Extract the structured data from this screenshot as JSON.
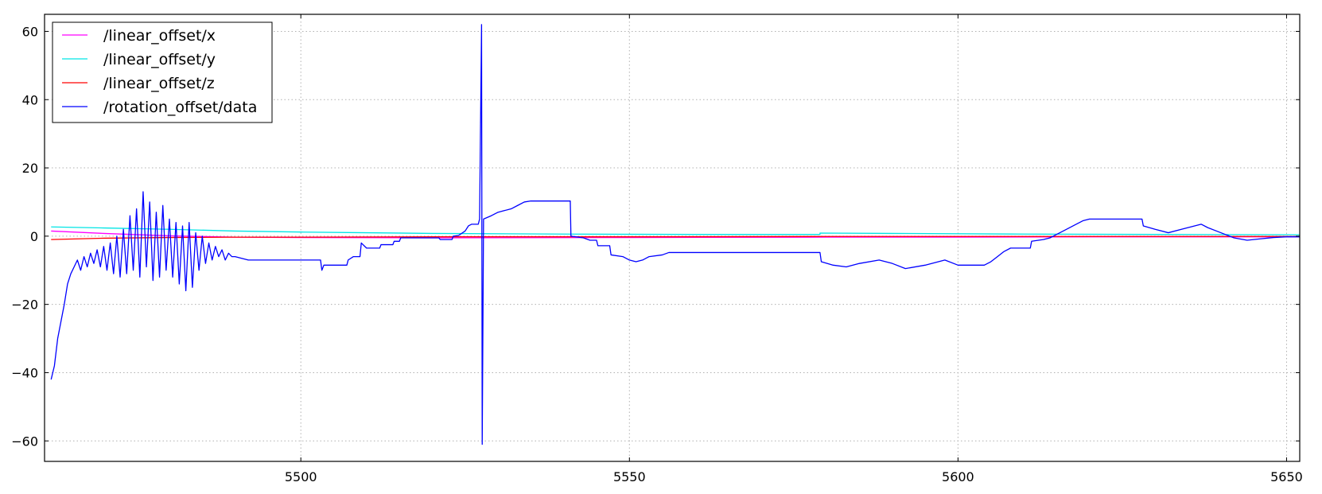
{
  "chart_data": {
    "type": "line",
    "title": "",
    "xlabel": "",
    "ylabel": "",
    "xlim": [
      5461,
      5652
    ],
    "ylim": [
      -66,
      65
    ],
    "grid": true,
    "legend_position": "upper-left",
    "x_ticks": [
      5500,
      5550,
      5600,
      5650
    ],
    "x_tick_labels": [
      "5500",
      "5550",
      "5600",
      "5650"
    ],
    "y_ticks": [
      60,
      40,
      20,
      0,
      -20,
      -40,
      -60
    ],
    "y_tick_labels": [
      "60",
      "40",
      "20",
      "0",
      "−20",
      "−40",
      "−60"
    ],
    "series": [
      {
        "name": "/linear_offset/x",
        "color": "#ff00ff",
        "points": [
          [
            5462,
            1.5
          ],
          [
            5470,
            0.8
          ],
          [
            5480,
            0.1
          ],
          [
            5490,
            -0.3
          ],
          [
            5500,
            -0.4
          ],
          [
            5520,
            -0.5
          ],
          [
            5550,
            -0.4
          ],
          [
            5580,
            -0.3
          ],
          [
            5600,
            -0.3
          ],
          [
            5620,
            -0.2
          ],
          [
            5652,
            -0.2
          ]
        ]
      },
      {
        "name": "/linear_offset/y",
        "color": "#00e5e5",
        "points": [
          [
            5462,
            2.7
          ],
          [
            5470,
            2.4
          ],
          [
            5480,
            2.0
          ],
          [
            5490,
            1.5
          ],
          [
            5500,
            1.2
          ],
          [
            5510,
            1.0
          ],
          [
            5520,
            0.8
          ],
          [
            5540,
            0.6
          ],
          [
            5560,
            0.5
          ],
          [
            5579,
            0.5
          ],
          [
            5579,
            0.9
          ],
          [
            5590,
            0.8
          ],
          [
            5610,
            0.6
          ],
          [
            5630,
            0.5
          ],
          [
            5652,
            0.4
          ]
        ]
      },
      {
        "name": "/linear_offset/z",
        "color": "#ff0000",
        "points": [
          [
            5462,
            -1.0
          ],
          [
            5470,
            -0.6
          ],
          [
            5480,
            -0.4
          ],
          [
            5490,
            -0.3
          ],
          [
            5500,
            -0.3
          ],
          [
            5520,
            -0.2
          ],
          [
            5550,
            -0.2
          ],
          [
            5580,
            -0.1
          ],
          [
            5600,
            -0.1
          ],
          [
            5652,
            -0.1
          ]
        ]
      },
      {
        "name": "/rotation_offset/data",
        "color": "#0000ff",
        "points": [
          [
            5462.0,
            -42
          ],
          [
            5462.5,
            -38
          ],
          [
            5463,
            -30
          ],
          [
            5463.5,
            -25
          ],
          [
            5464,
            -20
          ],
          [
            5464.5,
            -14
          ],
          [
            5465,
            -11
          ],
          [
            5465.5,
            -9
          ],
          [
            5466,
            -7
          ],
          [
            5466.5,
            -10
          ],
          [
            5467,
            -6
          ],
          [
            5467.5,
            -9
          ],
          [
            5468,
            -5
          ],
          [
            5468.5,
            -8
          ],
          [
            5469,
            -4
          ],
          [
            5469.5,
            -9
          ],
          [
            5470,
            -3
          ],
          [
            5470.5,
            -10
          ],
          [
            5471,
            -2
          ],
          [
            5471.5,
            -11
          ],
          [
            5472,
            0
          ],
          [
            5472.5,
            -12
          ],
          [
            5473,
            2
          ],
          [
            5473.5,
            -11
          ],
          [
            5474,
            6
          ],
          [
            5474.5,
            -10
          ],
          [
            5475,
            8
          ],
          [
            5475.5,
            -12
          ],
          [
            5476,
            13
          ],
          [
            5476.5,
            -9
          ],
          [
            5477,
            10
          ],
          [
            5477.5,
            -13
          ],
          [
            5478,
            7
          ],
          [
            5478.5,
            -12
          ],
          [
            5479,
            9
          ],
          [
            5479.5,
            -10
          ],
          [
            5480,
            5
          ],
          [
            5480.5,
            -12
          ],
          [
            5481,
            4
          ],
          [
            5481.5,
            -14
          ],
          [
            5482,
            3
          ],
          [
            5482.5,
            -16
          ],
          [
            5483,
            4
          ],
          [
            5483.5,
            -15
          ],
          [
            5484,
            1
          ],
          [
            5484.5,
            -10
          ],
          [
            5485,
            0
          ],
          [
            5485.5,
            -8
          ],
          [
            5486,
            -2
          ],
          [
            5486.5,
            -7
          ],
          [
            5487,
            -3
          ],
          [
            5487.5,
            -6
          ],
          [
            5488,
            -4
          ],
          [
            5488.5,
            -7
          ],
          [
            5489,
            -5
          ],
          [
            5489.5,
            -6
          ],
          [
            5490,
            -6
          ],
          [
            5491,
            -6.5
          ],
          [
            5492,
            -7
          ],
          [
            5493,
            -7
          ],
          [
            5494.5,
            -7
          ],
          [
            5494.7,
            -7
          ],
          [
            5503,
            -7
          ],
          [
            5503.2,
            -10
          ],
          [
            5503.5,
            -8.5
          ],
          [
            5507,
            -8.5
          ],
          [
            5507.2,
            -7
          ],
          [
            5508,
            -6
          ],
          [
            5509,
            -6
          ],
          [
            5509.2,
            -2
          ],
          [
            5510,
            -3.5
          ],
          [
            5512,
            -3.5
          ],
          [
            5512.2,
            -2.5
          ],
          [
            5514,
            -2.5
          ],
          [
            5514.2,
            -1.5
          ],
          [
            5515,
            -1.5
          ],
          [
            5515.2,
            -0.5
          ],
          [
            5521,
            -0.5
          ],
          [
            5521.2,
            -1
          ],
          [
            5523,
            -1
          ],
          [
            5523.2,
            0
          ],
          [
            5524,
            0.2
          ],
          [
            5525,
            1.5
          ],
          [
            5525.5,
            3
          ],
          [
            5526,
            3.5
          ],
          [
            5527,
            3.5
          ],
          [
            5527.2,
            5
          ],
          [
            5527.5,
            62
          ],
          [
            5527.6,
            -61
          ],
          [
            5527.8,
            5
          ],
          [
            5529,
            6
          ],
          [
            5530,
            7
          ],
          [
            5531,
            7.5
          ],
          [
            5532,
            8
          ],
          [
            5533,
            9
          ],
          [
            5534,
            10
          ],
          [
            5535,
            10.3
          ],
          [
            5541,
            10.3
          ],
          [
            5541.1,
            0
          ],
          [
            5543,
            -0.5
          ],
          [
            5544,
            -1.2
          ],
          [
            5545,
            -1.2
          ],
          [
            5545.2,
            -2.8
          ],
          [
            5547,
            -2.8
          ],
          [
            5547.2,
            -5.5
          ],
          [
            5549,
            -6
          ],
          [
            5550,
            -7
          ],
          [
            5551,
            -7.5
          ],
          [
            5552,
            -7
          ],
          [
            5553,
            -6
          ],
          [
            5555,
            -5.5
          ],
          [
            5556,
            -4.8
          ],
          [
            5579,
            -4.8
          ],
          [
            5579.2,
            -7.5
          ],
          [
            5581,
            -8.5
          ],
          [
            5583,
            -9
          ],
          [
            5585,
            -8
          ],
          [
            5588,
            -7
          ],
          [
            5590,
            -8
          ],
          [
            5592,
            -9.5
          ],
          [
            5595,
            -8.5
          ],
          [
            5598,
            -7
          ],
          [
            5600,
            -8.5
          ],
          [
            5604,
            -8.5
          ],
          [
            5605,
            -7.5
          ],
          [
            5606,
            -6
          ],
          [
            5607,
            -4.5
          ],
          [
            5608,
            -3.5
          ],
          [
            5610,
            -3.5
          ],
          [
            5611,
            -3.5
          ],
          [
            5611.2,
            -1.5
          ],
          [
            5613,
            -1
          ],
          [
            5614,
            -0.5
          ],
          [
            5615,
            0.5
          ],
          [
            5616,
            1.5
          ],
          [
            5618,
            3.5
          ],
          [
            5619,
            4.5
          ],
          [
            5620,
            5
          ],
          [
            5628,
            5
          ],
          [
            5628.2,
            3
          ],
          [
            5630,
            2
          ],
          [
            5632,
            1
          ],
          [
            5634,
            2
          ],
          [
            5636,
            3
          ],
          [
            5637,
            3.5
          ],
          [
            5638,
            2.5
          ],
          [
            5640,
            1
          ],
          [
            5642,
            -0.5
          ],
          [
            5644,
            -1.2
          ],
          [
            5646,
            -0.8
          ],
          [
            5648,
            -0.4
          ],
          [
            5650,
            -0.2
          ],
          [
            5652,
            -0.2
          ]
        ]
      }
    ]
  }
}
